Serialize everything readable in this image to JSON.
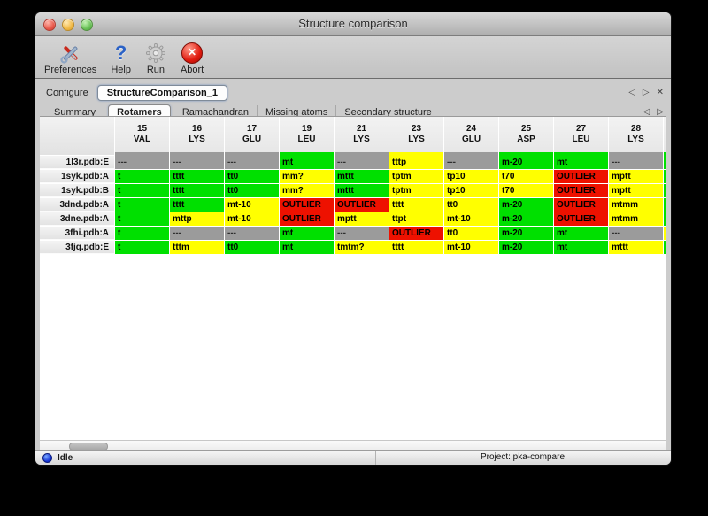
{
  "window": {
    "title": "Structure comparison"
  },
  "toolbar": [
    {
      "label": "Preferences",
      "icon": "preferences-tools-icon"
    },
    {
      "label": "Help",
      "icon": "help-question-icon"
    },
    {
      "label": "Run",
      "icon": "run-gear-icon"
    },
    {
      "label": "Abort",
      "icon": "abort-icon"
    }
  ],
  "configure": {
    "label": "Configure",
    "active_doc": "StructureComparison_1",
    "nav": {
      "prev": "◁",
      "next": "▷",
      "close": "✕"
    }
  },
  "tabs": {
    "items": [
      "Summary",
      "Rotamers",
      "Ramachandran",
      "Missing atoms",
      "Secondary structure"
    ],
    "active_index": 1,
    "nav": {
      "prev": "◁",
      "next": "▷"
    }
  },
  "legend_colors": {
    "favored": "#00e000",
    "allowed": "#ffff00",
    "outlier": "#ee1100",
    "missing": "#9b9b9b"
  },
  "table": {
    "columns": [
      {
        "number": "15",
        "residue": "VAL",
        "strip": "missing"
      },
      {
        "number": "16",
        "residue": "LYS",
        "strip": "missing"
      },
      {
        "number": "17",
        "residue": "GLU",
        "strip": "missing"
      },
      {
        "number": "19",
        "residue": "LEU",
        "strip": "favored"
      },
      {
        "number": "21",
        "residue": "LYS",
        "strip": "missing"
      },
      {
        "number": "23",
        "residue": "LYS",
        "strip": "allowed"
      },
      {
        "number": "24",
        "residue": "GLU",
        "strip": "missing"
      },
      {
        "number": "25",
        "residue": "ASP",
        "strip": "favored"
      },
      {
        "number": "27",
        "residue": "LEU",
        "strip": "favored"
      },
      {
        "number": "28",
        "residue": "LYS",
        "strip": "missing"
      }
    ],
    "partial_column": {
      "strip": "favored"
    },
    "rows": [
      {
        "label": "1l3r.pdb:E",
        "partial": "favored",
        "cells": [
          {
            "t": "---",
            "c": "missing"
          },
          {
            "t": "---",
            "c": "missing"
          },
          {
            "t": "---",
            "c": "missing"
          },
          {
            "t": "mt",
            "c": "favored"
          },
          {
            "t": "---",
            "c": "missing"
          },
          {
            "t": "tttp",
            "c": "allowed"
          },
          {
            "t": "---",
            "c": "missing"
          },
          {
            "t": "m-20",
            "c": "favored"
          },
          {
            "t": "mt",
            "c": "favored"
          },
          {
            "t": "---",
            "c": "missing"
          }
        ]
      },
      {
        "label": "1syk.pdb:A",
        "partial": "favored",
        "cells": [
          {
            "t": "t",
            "c": "favored"
          },
          {
            "t": "tttt",
            "c": "favored"
          },
          {
            "t": "tt0",
            "c": "favored"
          },
          {
            "t": "mm?",
            "c": "allowed"
          },
          {
            "t": "mttt",
            "c": "favored"
          },
          {
            "t": "tptm",
            "c": "allowed"
          },
          {
            "t": "tp10",
            "c": "allowed"
          },
          {
            "t": "t70",
            "c": "allowed"
          },
          {
            "t": "OUTLIER",
            "c": "outlier"
          },
          {
            "t": "mptt",
            "c": "allowed"
          }
        ]
      },
      {
        "label": "1syk.pdb:B",
        "partial": "favored",
        "cells": [
          {
            "t": "t",
            "c": "favored"
          },
          {
            "t": "tttt",
            "c": "favored"
          },
          {
            "t": "tt0",
            "c": "favored"
          },
          {
            "t": "mm?",
            "c": "allowed"
          },
          {
            "t": "mttt",
            "c": "favored"
          },
          {
            "t": "tptm",
            "c": "allowed"
          },
          {
            "t": "tp10",
            "c": "allowed"
          },
          {
            "t": "t70",
            "c": "allowed"
          },
          {
            "t": "OUTLIER",
            "c": "outlier"
          },
          {
            "t": "mptt",
            "c": "allowed"
          }
        ]
      },
      {
        "label": "3dnd.pdb:A",
        "partial": "favored",
        "cells": [
          {
            "t": "t",
            "c": "favored"
          },
          {
            "t": "tttt",
            "c": "favored"
          },
          {
            "t": "mt-10",
            "c": "allowed"
          },
          {
            "t": "OUTLIER",
            "c": "outlier"
          },
          {
            "t": "OUTLIER",
            "c": "outlier"
          },
          {
            "t": "tttt",
            "c": "allowed"
          },
          {
            "t": "tt0",
            "c": "allowed"
          },
          {
            "t": "m-20",
            "c": "favored"
          },
          {
            "t": "OUTLIER",
            "c": "outlier"
          },
          {
            "t": "mtmm",
            "c": "allowed"
          }
        ]
      },
      {
        "label": "3dne.pdb:A",
        "partial": "favored",
        "cells": [
          {
            "t": "t",
            "c": "favored"
          },
          {
            "t": "mttp",
            "c": "allowed"
          },
          {
            "t": "mt-10",
            "c": "allowed"
          },
          {
            "t": "OUTLIER",
            "c": "outlier"
          },
          {
            "t": "mptt",
            "c": "allowed"
          },
          {
            "t": "ttpt",
            "c": "allowed"
          },
          {
            "t": "mt-10",
            "c": "allowed"
          },
          {
            "t": "m-20",
            "c": "favored"
          },
          {
            "t": "OUTLIER",
            "c": "outlier"
          },
          {
            "t": "mtmm",
            "c": "allowed"
          }
        ]
      },
      {
        "label": "3fhi.pdb:A",
        "partial": "allowed",
        "cells": [
          {
            "t": "t",
            "c": "favored"
          },
          {
            "t": "---",
            "c": "missing"
          },
          {
            "t": "---",
            "c": "missing"
          },
          {
            "t": "mt",
            "c": "favored"
          },
          {
            "t": "---",
            "c": "missing"
          },
          {
            "t": "OUTLIER",
            "c": "outlier"
          },
          {
            "t": "tt0",
            "c": "allowed"
          },
          {
            "t": "m-20",
            "c": "favored"
          },
          {
            "t": "mt",
            "c": "favored"
          },
          {
            "t": "---",
            "c": "missing"
          }
        ]
      },
      {
        "label": "3fjq.pdb:E",
        "partial": "favored",
        "cells": [
          {
            "t": "t",
            "c": "favored"
          },
          {
            "t": "tttm",
            "c": "allowed"
          },
          {
            "t": "tt0",
            "c": "favored"
          },
          {
            "t": "mt",
            "c": "favored"
          },
          {
            "t": "tmtm?",
            "c": "allowed"
          },
          {
            "t": "tttt",
            "c": "allowed"
          },
          {
            "t": "mt-10",
            "c": "allowed"
          },
          {
            "t": "m-20",
            "c": "favored"
          },
          {
            "t": "mt",
            "c": "favored"
          },
          {
            "t": "mttt",
            "c": "allowed"
          }
        ]
      }
    ]
  },
  "statusbar": {
    "state": "Idle",
    "project": "Project: pka-compare"
  }
}
